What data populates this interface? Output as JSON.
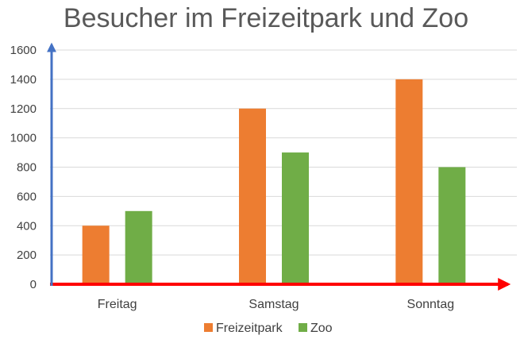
{
  "chart_data": {
    "type": "bar",
    "title": "Besucher im Freizeitpark und Zoo",
    "xlabel": "",
    "ylabel": "",
    "categories": [
      "Freitag",
      "Samstag",
      "Sonntag"
    ],
    "series": [
      {
        "name": "Freizeitpark",
        "values": [
          400,
          1200,
          1400
        ],
        "color": "#ED7D31"
      },
      {
        "name": "Zoo",
        "values": [
          500,
          900,
          800
        ],
        "color": "#70AD47"
      }
    ],
    "ylim": [
      0,
      1600
    ],
    "yticks": [
      0,
      200,
      400,
      600,
      800,
      1000,
      1200,
      1400,
      1600
    ],
    "grid": true,
    "legend_position": "bottom",
    "x_axis_color": "#FF0000",
    "y_axis_color": "#4472C4"
  }
}
